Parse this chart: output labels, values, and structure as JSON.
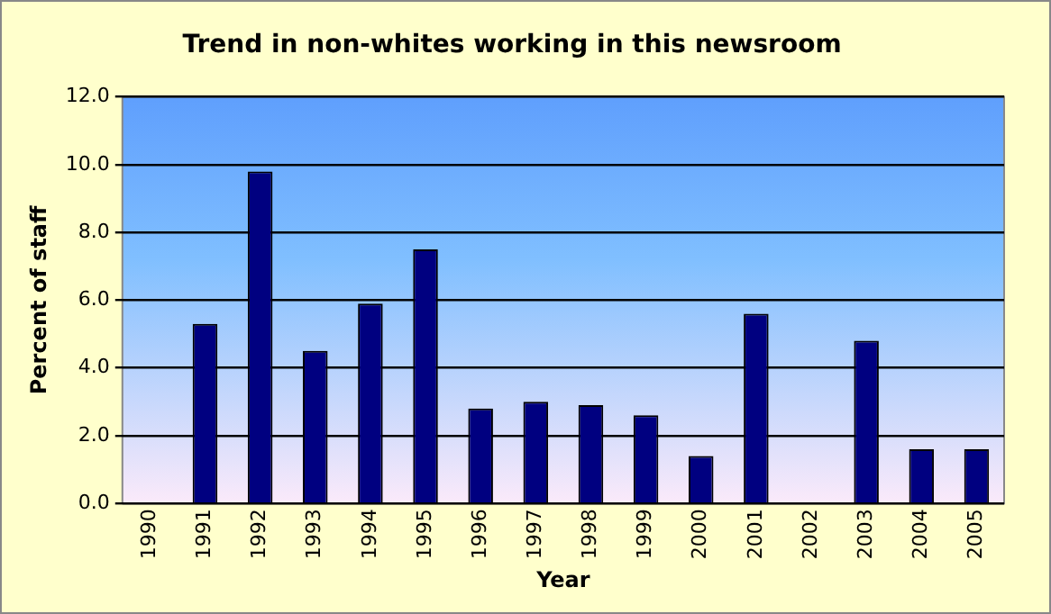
{
  "chart_data": {
    "type": "bar",
    "title": "Trend in non-whites working in this newsroom",
    "xlabel": "Year",
    "ylabel": "Percent of staff",
    "categories": [
      "1990",
      "1991",
      "1992",
      "1993",
      "1994",
      "1995",
      "1996",
      "1997",
      "1998",
      "1999",
      "2000",
      "2001",
      "2002",
      "2003",
      "2004",
      "2005"
    ],
    "values": [
      0,
      5.3,
      9.8,
      4.5,
      5.9,
      7.5,
      2.8,
      3.0,
      2.9,
      2.6,
      1.4,
      5.6,
      0,
      4.8,
      1.6,
      1.6
    ],
    "color": "#000080",
    "ylim": [
      0,
      12
    ],
    "yticks": [
      {
        "value": 0,
        "label": "0.0"
      },
      {
        "value": 2,
        "label": "2.0"
      },
      {
        "value": 4,
        "label": "4.0"
      },
      {
        "value": 6,
        "label": "6.0"
      },
      {
        "value": 8,
        "label": "8.0"
      },
      {
        "value": 10,
        "label": "10.0"
      },
      {
        "value": 12,
        "label": "12.0"
      }
    ],
    "grid": "y",
    "legend": false
  }
}
